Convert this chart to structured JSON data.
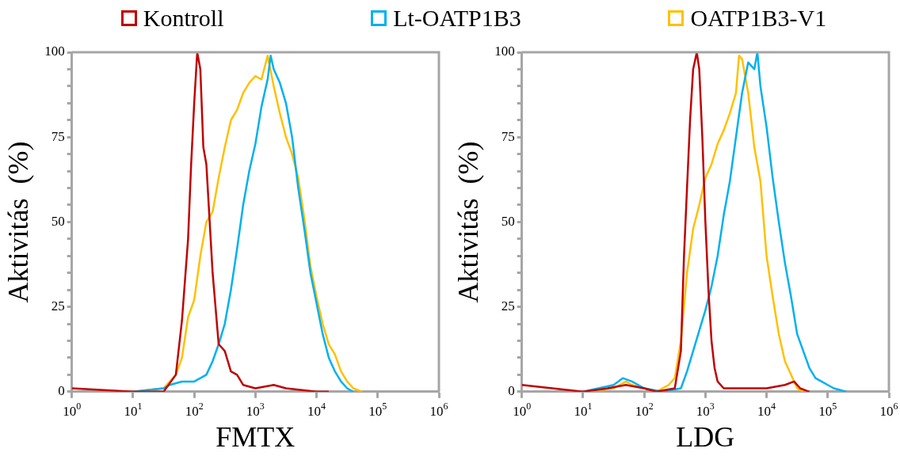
{
  "chart_data": [
    {
      "type": "line",
      "xlabel": "FMTX",
      "ylabel": "Aktivitás  (%)",
      "log": "x",
      "legend": "top",
      "grid": false,
      "xlim": [
        1,
        1000000
      ],
      "ylim": [
        0,
        100
      ],
      "xticks": [
        {
          "value": 1,
          "label": "10$^{0}$"
        },
        {
          "value": 10,
          "label": "10$^{1}$"
        },
        {
          "value": 100,
          "label": "10$^{2}$"
        },
        {
          "value": 1000,
          "label": "10$^{3}$"
        },
        {
          "value": 10000,
          "label": "10$^{4}$"
        },
        {
          "value": 100000,
          "label": "10$^{5}$"
        },
        {
          "value": 1000000,
          "label": "10$^{6}$"
        }
      ],
      "yticks": [
        0,
        {
          "value": 5,
          "label": null
        },
        {
          "value": 10,
          "label": null
        },
        {
          "value": 15,
          "label": null
        },
        {
          "value": 20,
          "label": null
        },
        25,
        {
          "value": 30,
          "label": null
        },
        {
          "value": 35,
          "label": null
        },
        {
          "value": 40,
          "label": null
        },
        {
          "value": 45,
          "label": null
        },
        50,
        {
          "value": 55,
          "label": null
        },
        {
          "value": 60,
          "label": null
        },
        {
          "value": 65,
          "label": null
        },
        {
          "value": 70,
          "label": null
        },
        75,
        {
          "value": 80,
          "label": null
        },
        {
          "value": 85,
          "label": null
        },
        {
          "value": 90,
          "label": null
        },
        {
          "value": 95,
          "label": null
        },
        100
      ],
      "series": [
        {
          "name": "Kontroll",
          "color": "#c00000",
          "x": [
            1,
            10,
            31.6,
            50.1,
            63.1,
            79.4,
            89.1,
            100,
            112,
            126,
            141,
            158,
            200,
            251,
            316,
            398,
            501,
            631,
            1000,
            1995,
            3162,
            10000,
            15800
          ],
          "values": [
            1,
            0,
            0,
            5,
            21,
            45,
            67,
            85,
            100,
            95,
            72,
            67,
            35,
            14,
            12,
            6,
            5,
            2,
            1,
            2,
            1,
            0,
            0
          ]
        },
        {
          "name": "Lt-OATP1B3",
          "color": "#00b0f0",
          "x": [
            10,
            31.6,
            39.8,
            63.1,
            100,
            158,
            200,
            251,
            316,
            398,
            501,
            631,
            794,
            1000,
            1259,
            1585,
            1778,
            1995,
            2512,
            3162,
            3981,
            5012,
            6310,
            7943,
            10000,
            12590,
            15850,
            19950,
            25120,
            31620,
            39810
          ],
          "values": [
            0,
            1,
            2,
            3,
            3,
            5,
            9,
            14,
            20,
            30,
            42,
            55,
            65,
            73,
            84,
            92,
            99,
            95,
            91,
            85,
            75,
            60,
            48,
            35,
            26,
            17,
            10,
            6,
            3,
            1,
            0
          ]
        },
        {
          "name": "OATP1B3-V1",
          "color": "#ffc000",
          "x": [
            10,
            31.6,
            50.1,
            63.1,
            79.4,
            100,
            126,
            158,
            200,
            251,
            316,
            398,
            501,
            631,
            794,
            1000,
            1259,
            1585,
            1995,
            2512,
            3162,
            3981,
            5012,
            6310,
            7943,
            10000,
            12590,
            15850,
            19950,
            25120,
            31620,
            39810,
            56230
          ],
          "values": [
            0,
            1,
            5,
            10,
            22,
            27,
            40,
            50,
            53,
            63,
            72,
            80,
            83,
            88,
            91,
            93,
            92,
            99,
            90,
            82,
            75,
            70,
            63,
            51,
            37,
            28,
            20,
            14,
            11,
            6,
            3,
            1,
            0
          ]
        }
      ]
    },
    {
      "type": "line",
      "xlabel": "LDG",
      "ylabel": "Aktivitás  (%)",
      "log": "x",
      "grid": false,
      "xlim": [
        1,
        1000000
      ],
      "ylim": [
        0,
        100
      ],
      "xticks": [
        {
          "value": 1,
          "label": "10$^{0}$"
        },
        {
          "value": 10,
          "label": "10$^{1}$"
        },
        {
          "value": 100,
          "label": "10$^{2}$"
        },
        {
          "value": 1000,
          "label": "10$^{3}$"
        },
        {
          "value": 10000,
          "label": "10$^{4}$"
        },
        {
          "value": 100000,
          "label": "10$^{5}$"
        },
        {
          "value": 1000000,
          "label": "10$^{6}$"
        }
      ],
      "yticks": [
        0,
        {
          "value": 5,
          "label": null
        },
        {
          "value": 10,
          "label": null
        },
        {
          "value": 15,
          "label": null
        },
        {
          "value": 20,
          "label": null
        },
        25,
        {
          "value": 30,
          "label": null
        },
        {
          "value": 35,
          "label": null
        },
        {
          "value": 40,
          "label": null
        },
        {
          "value": 45,
          "label": null
        },
        50,
        {
          "value": 55,
          "label": null
        },
        {
          "value": 60,
          "label": null
        },
        {
          "value": 65,
          "label": null
        },
        {
          "value": 70,
          "label": null
        },
        75,
        {
          "value": 80,
          "label": null
        },
        {
          "value": 85,
          "label": null
        },
        {
          "value": 90,
          "label": null
        },
        {
          "value": 95,
          "label": null
        },
        100
      ],
      "series": [
        {
          "color": "#c00000",
          "x": [
            1,
            10,
            25.1,
            50.1,
            100,
            158,
            316,
            398,
            447,
            501,
            562,
            631,
            724,
            794,
            891,
            1000,
            1122,
            1259,
            1413,
            1585,
            1995,
            3981,
            10000,
            19950,
            28180,
            35480,
            50120
          ],
          "values": [
            2,
            0,
            1,
            2,
            1,
            0,
            1,
            12,
            40,
            60,
            80,
            95,
            100,
            95,
            75,
            50,
            30,
            15,
            7,
            3,
            1,
            1,
            1,
            2,
            3,
            1,
            0
          ]
        },
        {
          "color": "#00b0f0",
          "x": [
            10,
            31.6,
            44.7,
            63.1,
            100,
            200,
            398,
            501,
            631,
            794,
            1000,
            1259,
            1585,
            1995,
            2512,
            3162,
            3981,
            5012,
            6310,
            7079,
            7943,
            10000,
            12590,
            15850,
            19950,
            25120,
            31620,
            39810,
            50120,
            63100,
            79430,
            100000,
            125900,
            199500
          ],
          "values": [
            0,
            2,
            4,
            3,
            1,
            0,
            1,
            6,
            12,
            18,
            24,
            31,
            40,
            52,
            62,
            75,
            88,
            97,
            95,
            100,
            90,
            78,
            63,
            50,
            38,
            28,
            17,
            12,
            7,
            4,
            3,
            2,
            1,
            0
          ]
        },
        {
          "color": "#ffc000",
          "x": [
            10,
            31.6,
            50.1,
            63.1,
            100,
            158,
            251,
            316,
            398,
            501,
            631,
            794,
            1000,
            1259,
            1585,
            1995,
            2512,
            3162,
            3548,
            3981,
            5012,
            6310,
            7943,
            10000,
            12590,
            15850,
            19950,
            25120,
            31620,
            39810
          ],
          "values": [
            0,
            1,
            3,
            2,
            1,
            0,
            2,
            4,
            15,
            35,
            48,
            55,
            63,
            67,
            73,
            77,
            82,
            88,
            99,
            98,
            88,
            72,
            62,
            40,
            28,
            17,
            9,
            5,
            1,
            0
          ]
        }
      ]
    }
  ]
}
